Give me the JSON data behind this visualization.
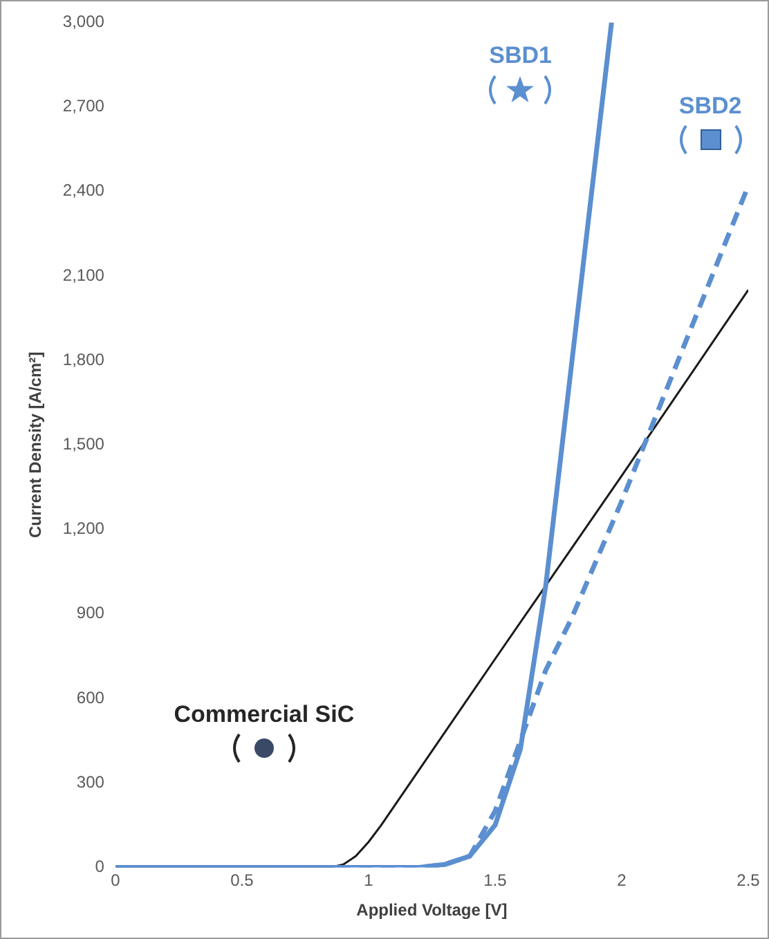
{
  "chart_data": {
    "type": "line",
    "xlabel": "Applied Voltage [V]",
    "ylabel": "Current Density [A/cm²]",
    "xlim": [
      0,
      2.5
    ],
    "xticks": [
      0,
      0.5,
      1,
      1.5,
      2,
      2.5
    ],
    "ylim": [
      0,
      3000
    ],
    "yticks": [
      {
        "value": 0,
        "label": "0"
      },
      {
        "value": 300,
        "label": "300"
      },
      {
        "value": 600,
        "label": "600"
      },
      {
        "value": 900,
        "label": "900"
      },
      {
        "value": 1200,
        "label": "1,200"
      },
      {
        "value": 1500,
        "label": "1,500"
      },
      {
        "value": 1800,
        "label": "1,800"
      },
      {
        "value": 2100,
        "label": "2,100"
      },
      {
        "value": 2400,
        "label": "2,400"
      },
      {
        "value": 2700,
        "label": "2,700"
      },
      {
        "value": 3000,
        "label": "3,000"
      }
    ],
    "grid": false,
    "legend": false,
    "marker": "none",
    "series": [
      {
        "name": "SBD1",
        "color": "#5b8fd0",
        "line_style": "solid",
        "x": [
          0,
          1.2,
          1.3,
          1.4,
          1.5,
          1.6,
          1.7,
          1.8,
          1.9,
          1.96
        ],
        "values": [
          0,
          0,
          10,
          40,
          150,
          420,
          1000,
          1770,
          2540,
          3000
        ]
      },
      {
        "name": "SBD2",
        "color": "#5b8fd0",
        "line_style": "dashed",
        "x": [
          0,
          1.2,
          1.3,
          1.4,
          1.5,
          1.6,
          1.7,
          1.8,
          2.0,
          2.5
        ],
        "values": [
          0,
          0,
          10,
          40,
          200,
          450,
          700,
          880,
          1300,
          2420
        ]
      },
      {
        "name": "Commercial SiC",
        "color": "#1a1a1a",
        "line_style": "solid",
        "x": [
          0,
          0.85,
          0.9,
          0.95,
          1.0,
          1.05,
          1.5,
          2.0,
          2.5
        ],
        "values": [
          0,
          0,
          10,
          40,
          90,
          150,
          740,
          1390,
          2050
        ]
      }
    ]
  }
}
